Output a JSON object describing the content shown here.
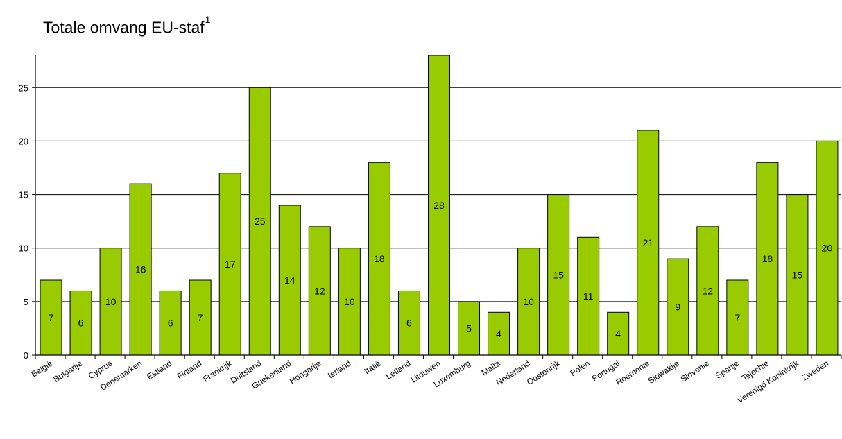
{
  "chart_data": {
    "type": "bar",
    "title": "Totale omvang EU-staf",
    "title_superscript": "1",
    "xlabel": "",
    "ylabel": "",
    "ylim": [
      0,
      28
    ],
    "yticks": [
      0,
      5,
      10,
      15,
      20,
      25
    ],
    "grid": "horizontal",
    "legend": "none",
    "categories": [
      "België",
      "Bulgarije",
      "Cyprus",
      "Denemarken",
      "Estland",
      "Finland",
      "Frankrijk",
      "Duitsland",
      "Griekenland",
      "Hongarije",
      "Ierland",
      "Italië",
      "Letland",
      "Litouwen",
      "Luxemburg",
      "Malta",
      "Nederland",
      "Oostenrijk",
      "Polen",
      "Portugal",
      "Roemenie",
      "Slowakije",
      "Slovenie",
      "Spanje",
      "Tsjechië",
      "Verenigd Koninkrijk",
      "Zweden"
    ],
    "values": [
      7,
      6,
      10,
      16,
      6,
      7,
      17,
      25,
      14,
      12,
      10,
      18,
      6,
      28,
      5,
      4,
      10,
      15,
      11,
      4,
      21,
      9,
      12,
      7,
      18,
      15,
      20
    ],
    "bar_color": "#99cc00",
    "bar_edge_color": "#000000"
  }
}
